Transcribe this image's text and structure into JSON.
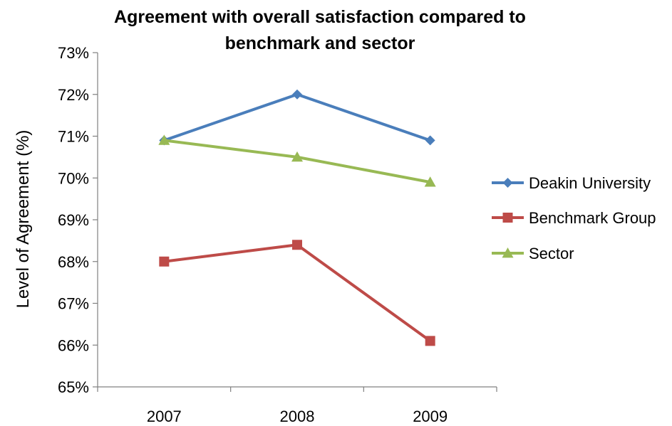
{
  "chart_data": {
    "type": "line",
    "title_lines": [
      "Agreement with overall satisfaction compared to",
      "benchmark and sector"
    ],
    "xlabel": "",
    "ylabel": "Level of Agreement (%)",
    "categories": [
      "2007",
      "2008",
      "2009"
    ],
    "yticks": [
      "65%",
      "66%",
      "67%",
      "68%",
      "69%",
      "70%",
      "71%",
      "72%",
      "73%"
    ],
    "ylim": [
      65,
      73
    ],
    "grid": false,
    "legend_position": "right",
    "series": [
      {
        "name": "Deakin University",
        "values": [
          70.9,
          72.0,
          70.9
        ],
        "color": "#4a7ebb",
        "marker": "diamond"
      },
      {
        "name": "Benchmark Group",
        "values": [
          68.0,
          68.4,
          66.1
        ],
        "color": "#be4b48",
        "marker": "square"
      },
      {
        "name": "Sector",
        "values": [
          70.9,
          70.5,
          69.9
        ],
        "color": "#98b954",
        "marker": "triangle"
      }
    ]
  }
}
